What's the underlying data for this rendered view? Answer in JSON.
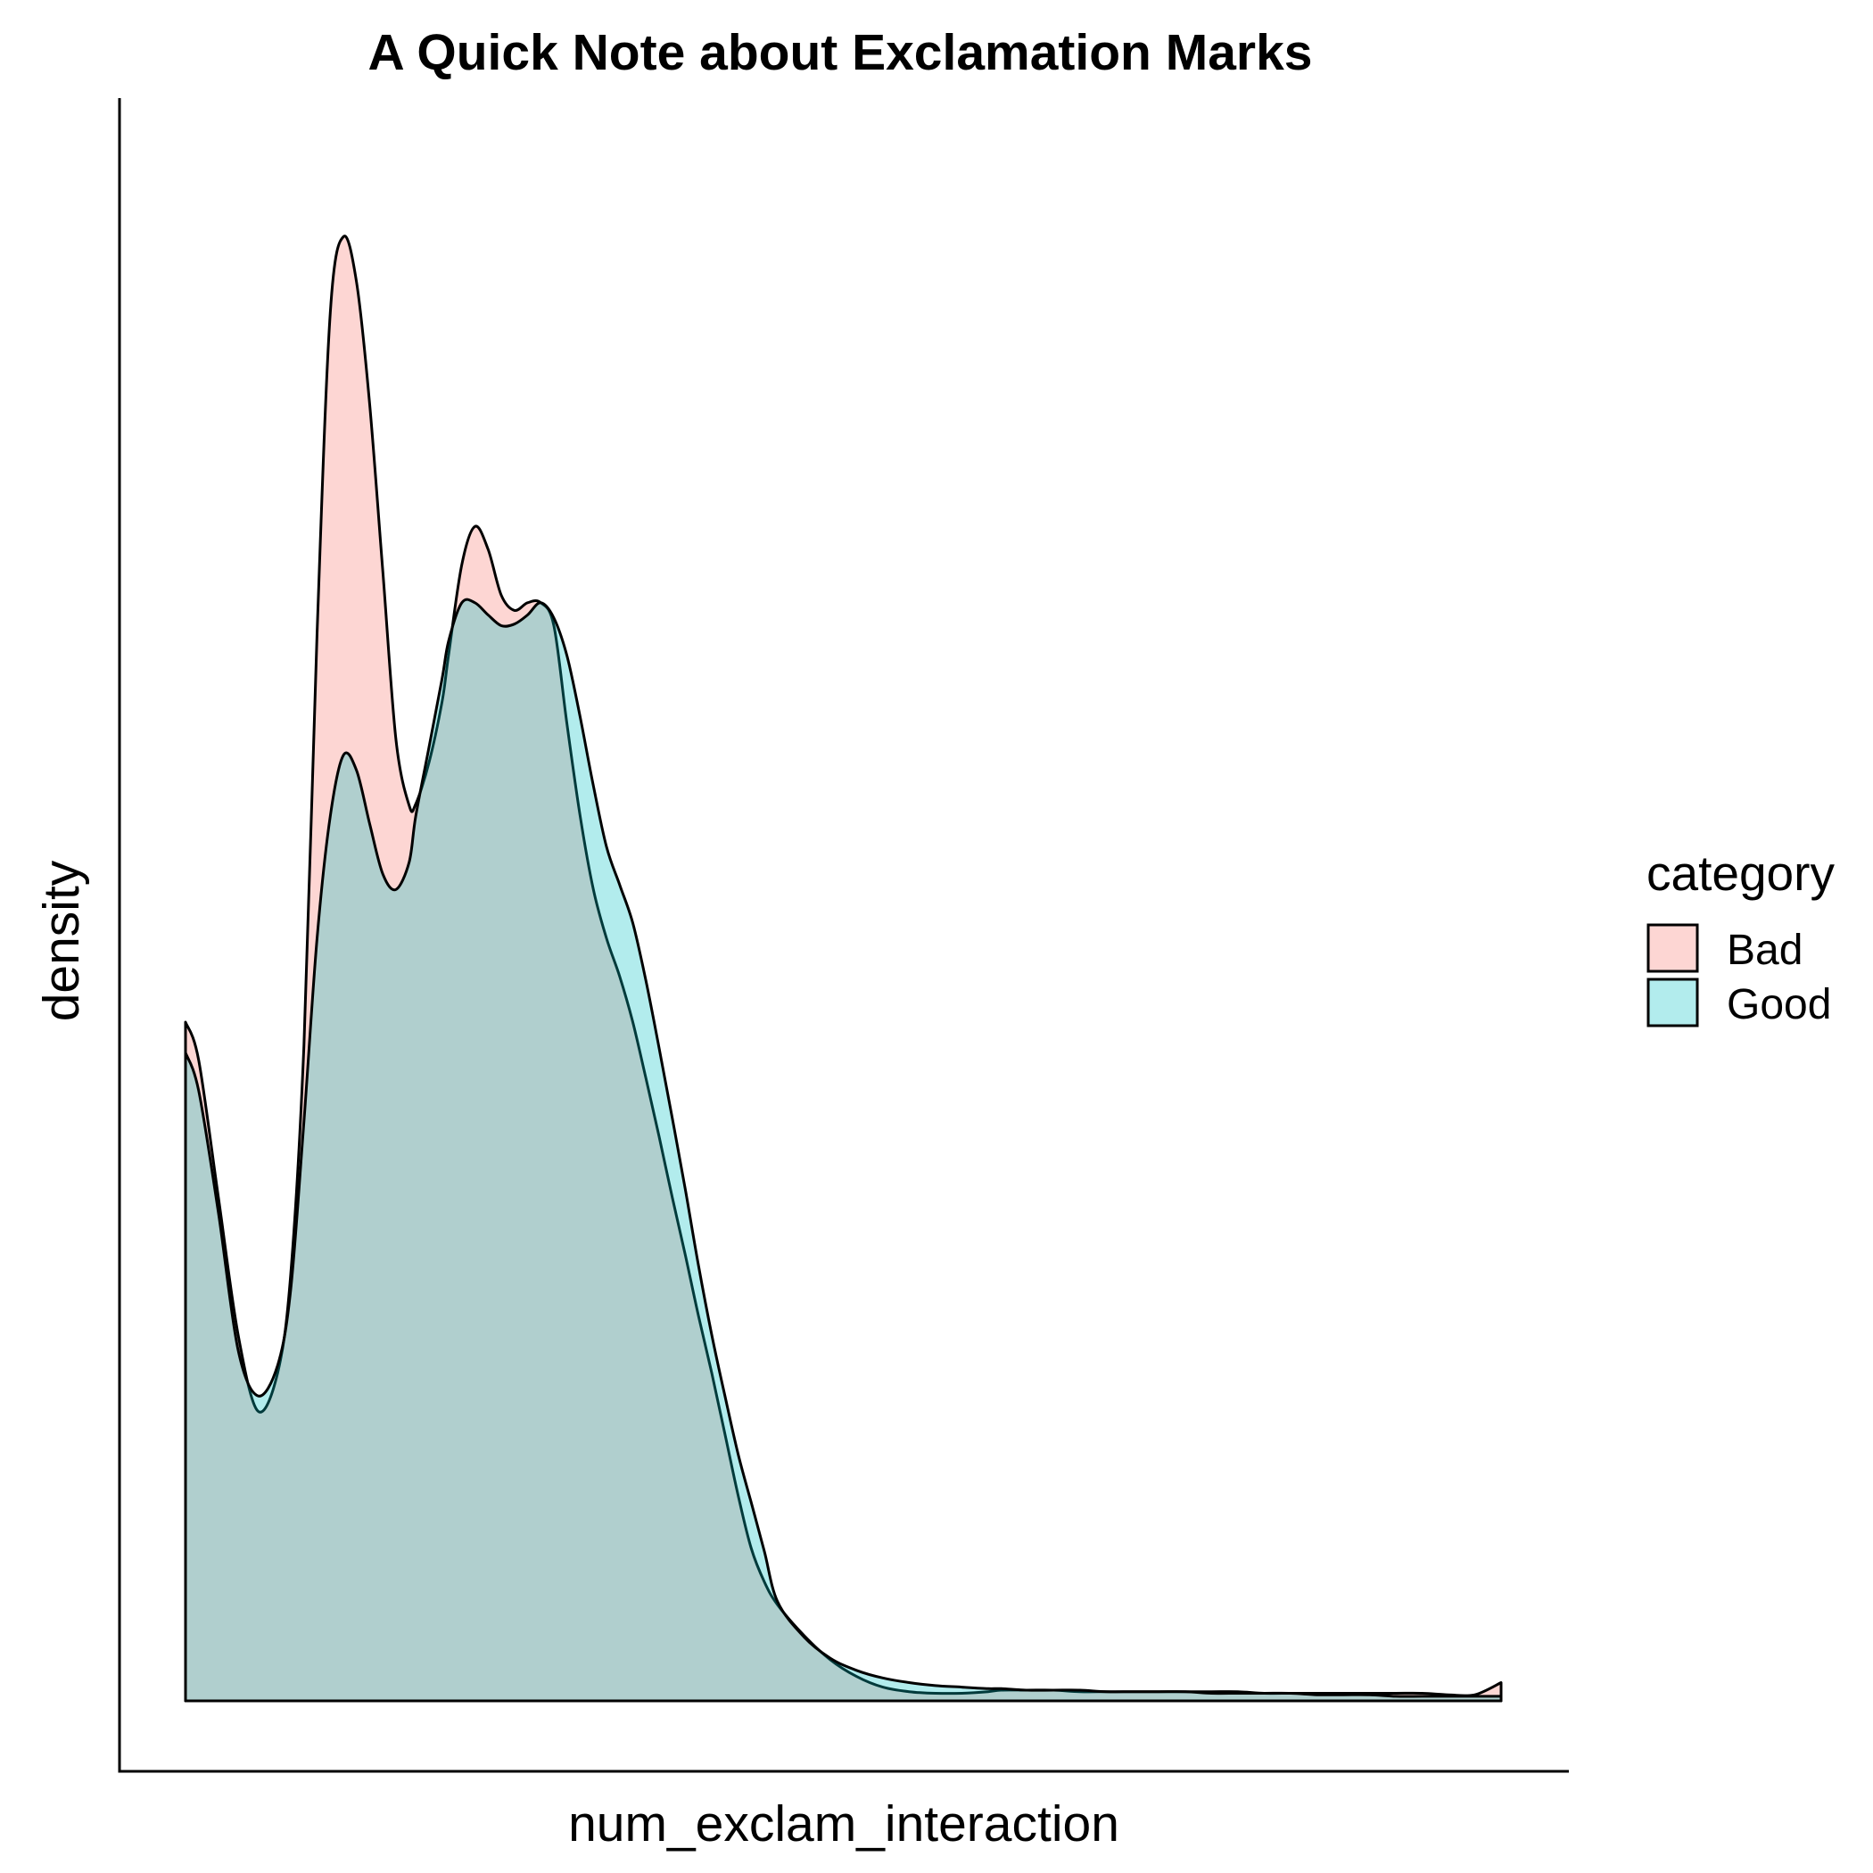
{
  "chart_data": {
    "type": "area",
    "title": "A Quick Note about Exclamation Marks",
    "xlabel": "num_exclam_interaction",
    "ylabel": "density",
    "x_ticks_shown": false,
    "y_ticks_shown": false,
    "grid": false,
    "legend": {
      "title": "category",
      "position": "right"
    },
    "xlim": [
      0,
      1
    ],
    "ylim": [
      0,
      1
    ],
    "x": [
      0.0,
      0.01,
      0.025,
      0.04,
      0.055,
      0.07,
      0.08,
      0.09,
      0.1,
      0.11,
      0.12,
      0.13,
      0.14,
      0.15,
      0.16,
      0.17,
      0.175,
      0.185,
      0.195,
      0.2,
      0.21,
      0.22,
      0.23,
      0.24,
      0.25,
      0.26,
      0.27,
      0.28,
      0.29,
      0.3,
      0.31,
      0.32,
      0.33,
      0.34,
      0.35,
      0.36,
      0.37,
      0.38,
      0.39,
      0.4,
      0.41,
      0.42,
      0.43,
      0.44,
      0.45,
      0.47,
      0.49,
      0.51,
      0.53,
      0.55,
      0.57,
      0.59,
      0.61,
      0.62,
      0.64,
      0.66,
      0.68,
      0.7,
      0.72,
      0.74,
      0.76,
      0.78,
      0.8,
      0.82,
      0.84,
      0.86,
      0.88,
      0.9,
      0.92,
      0.94,
      0.96,
      0.98,
      1.0
    ],
    "series": [
      {
        "name": "Bad",
        "color": "#F8766D",
        "values": [
          0.445,
          0.42,
          0.33,
          0.24,
          0.19,
          0.215,
          0.28,
          0.43,
          0.7,
          0.91,
          0.96,
          0.93,
          0.85,
          0.74,
          0.63,
          0.587,
          0.588,
          0.615,
          0.655,
          0.686,
          0.745,
          0.77,
          0.755,
          0.725,
          0.715,
          0.72,
          0.72,
          0.705,
          0.64,
          0.58,
          0.532,
          0.5,
          0.475,
          0.445,
          0.408,
          0.37,
          0.33,
          0.292,
          0.252,
          0.215,
          0.175,
          0.135,
          0.1,
          0.078,
          0.063,
          0.043,
          0.027,
          0.016,
          0.009,
          0.006,
          0.005,
          0.005,
          0.006,
          0.007,
          0.007,
          0.007,
          0.006,
          0.006,
          0.006,
          0.006,
          0.006,
          0.006,
          0.006,
          0.005,
          0.005,
          0.005,
          0.005,
          0.005,
          0.005,
          0.005,
          0.004,
          0.004,
          0.012
        ]
      },
      {
        "name": "Good",
        "color": "#00BFC4",
        "values": [
          0.425,
          0.4,
          0.32,
          0.23,
          0.2,
          0.22,
          0.27,
          0.38,
          0.5,
          0.58,
          0.62,
          0.61,
          0.575,
          0.542,
          0.532,
          0.55,
          0.58,
          0.625,
          0.67,
          0.695,
          0.72,
          0.72,
          0.712,
          0.705,
          0.706,
          0.712,
          0.72,
          0.71,
          0.685,
          0.645,
          0.6,
          0.56,
          0.535,
          0.51,
          0.472,
          0.428,
          0.382,
          0.335,
          0.285,
          0.24,
          0.2,
          0.162,
          0.13,
          0.098,
          0.065,
          0.042,
          0.028,
          0.02,
          0.015,
          0.012,
          0.01,
          0.009,
          0.008,
          0.008,
          0.007,
          0.007,
          0.007,
          0.006,
          0.006,
          0.006,
          0.006,
          0.005,
          0.005,
          0.005,
          0.005,
          0.004,
          0.004,
          0.004,
          0.003,
          0.003,
          0.003,
          0.003,
          0.003
        ]
      }
    ]
  }
}
